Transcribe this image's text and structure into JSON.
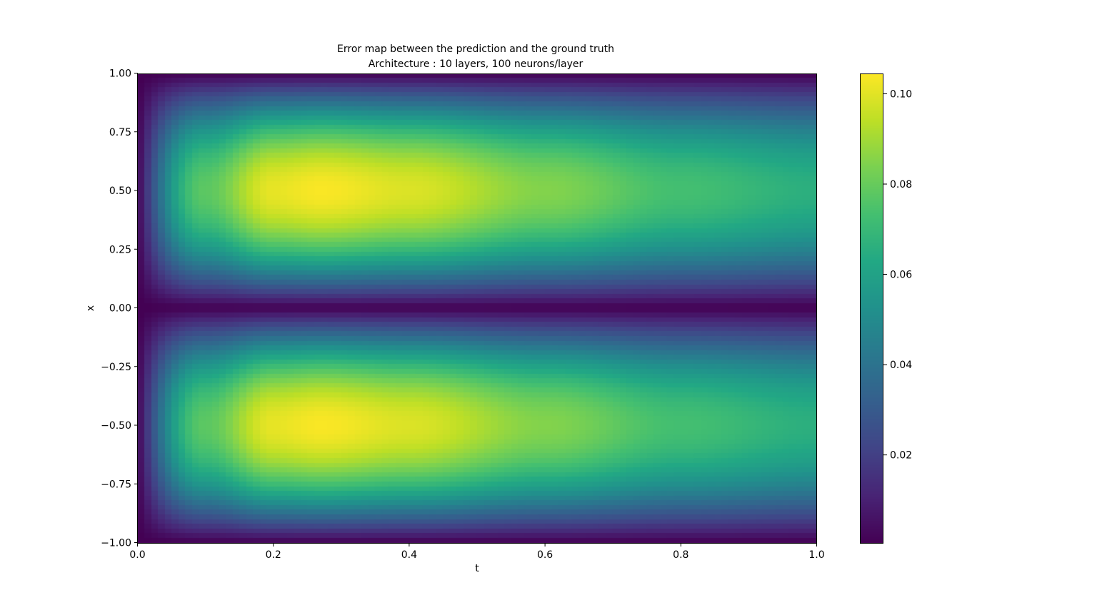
{
  "chart_data": {
    "type": "heatmap",
    "title_line1": "Error map between the prediction and the ground truth",
    "title_line2": "Architecture : 10 layers, 100 neurons/layer",
    "xlabel": "t",
    "ylabel": "x",
    "xlim": [
      0.0,
      1.0
    ],
    "ylim": [
      -1.0,
      1.0
    ],
    "x_ticks": [
      {
        "value": 0.0,
        "label": "0.0"
      },
      {
        "value": 0.2,
        "label": "0.2"
      },
      {
        "value": 0.4,
        "label": "0.4"
      },
      {
        "value": 0.6,
        "label": "0.6"
      },
      {
        "value": 0.8,
        "label": "0.8"
      },
      {
        "value": 1.0,
        "label": "1.0"
      }
    ],
    "y_ticks": [
      {
        "value": 1.0,
        "label": "1.00"
      },
      {
        "value": 0.75,
        "label": "0.75"
      },
      {
        "value": 0.5,
        "label": "0.50"
      },
      {
        "value": 0.25,
        "label": "0.25"
      },
      {
        "value": 0.0,
        "label": "0.00"
      },
      {
        "value": -0.25,
        "label": "−0.25"
      },
      {
        "value": -0.5,
        "label": "−0.50"
      },
      {
        "value": -0.75,
        "label": "−0.75"
      },
      {
        "value": -1.0,
        "label": "−1.00"
      }
    ],
    "colormap": "viridis",
    "colorbar": {
      "vmin": 0.0005,
      "vmax": 0.1045,
      "ticks": [
        {
          "value": 0.02,
          "label": "0.02"
        },
        {
          "value": 0.04,
          "label": "0.04"
        },
        {
          "value": 0.06,
          "label": "0.06"
        },
        {
          "value": 0.08,
          "label": "0.08"
        },
        {
          "value": 0.1,
          "label": "0.10"
        }
      ]
    },
    "grid": {
      "nt": 100,
      "nx": 100,
      "description": "error ~ 0.104 * |sin(pi x)| * f(t), f peaks at t~0.27, zero at t=0",
      "t_samples": [
        0.0,
        0.1,
        0.2,
        0.27,
        0.4,
        0.6,
        0.8,
        1.0
      ],
      "max_error_at_t": [
        0.0005,
        0.078,
        0.101,
        0.104,
        0.099,
        0.085,
        0.073,
        0.066
      ]
    },
    "grid_lines": false
  }
}
